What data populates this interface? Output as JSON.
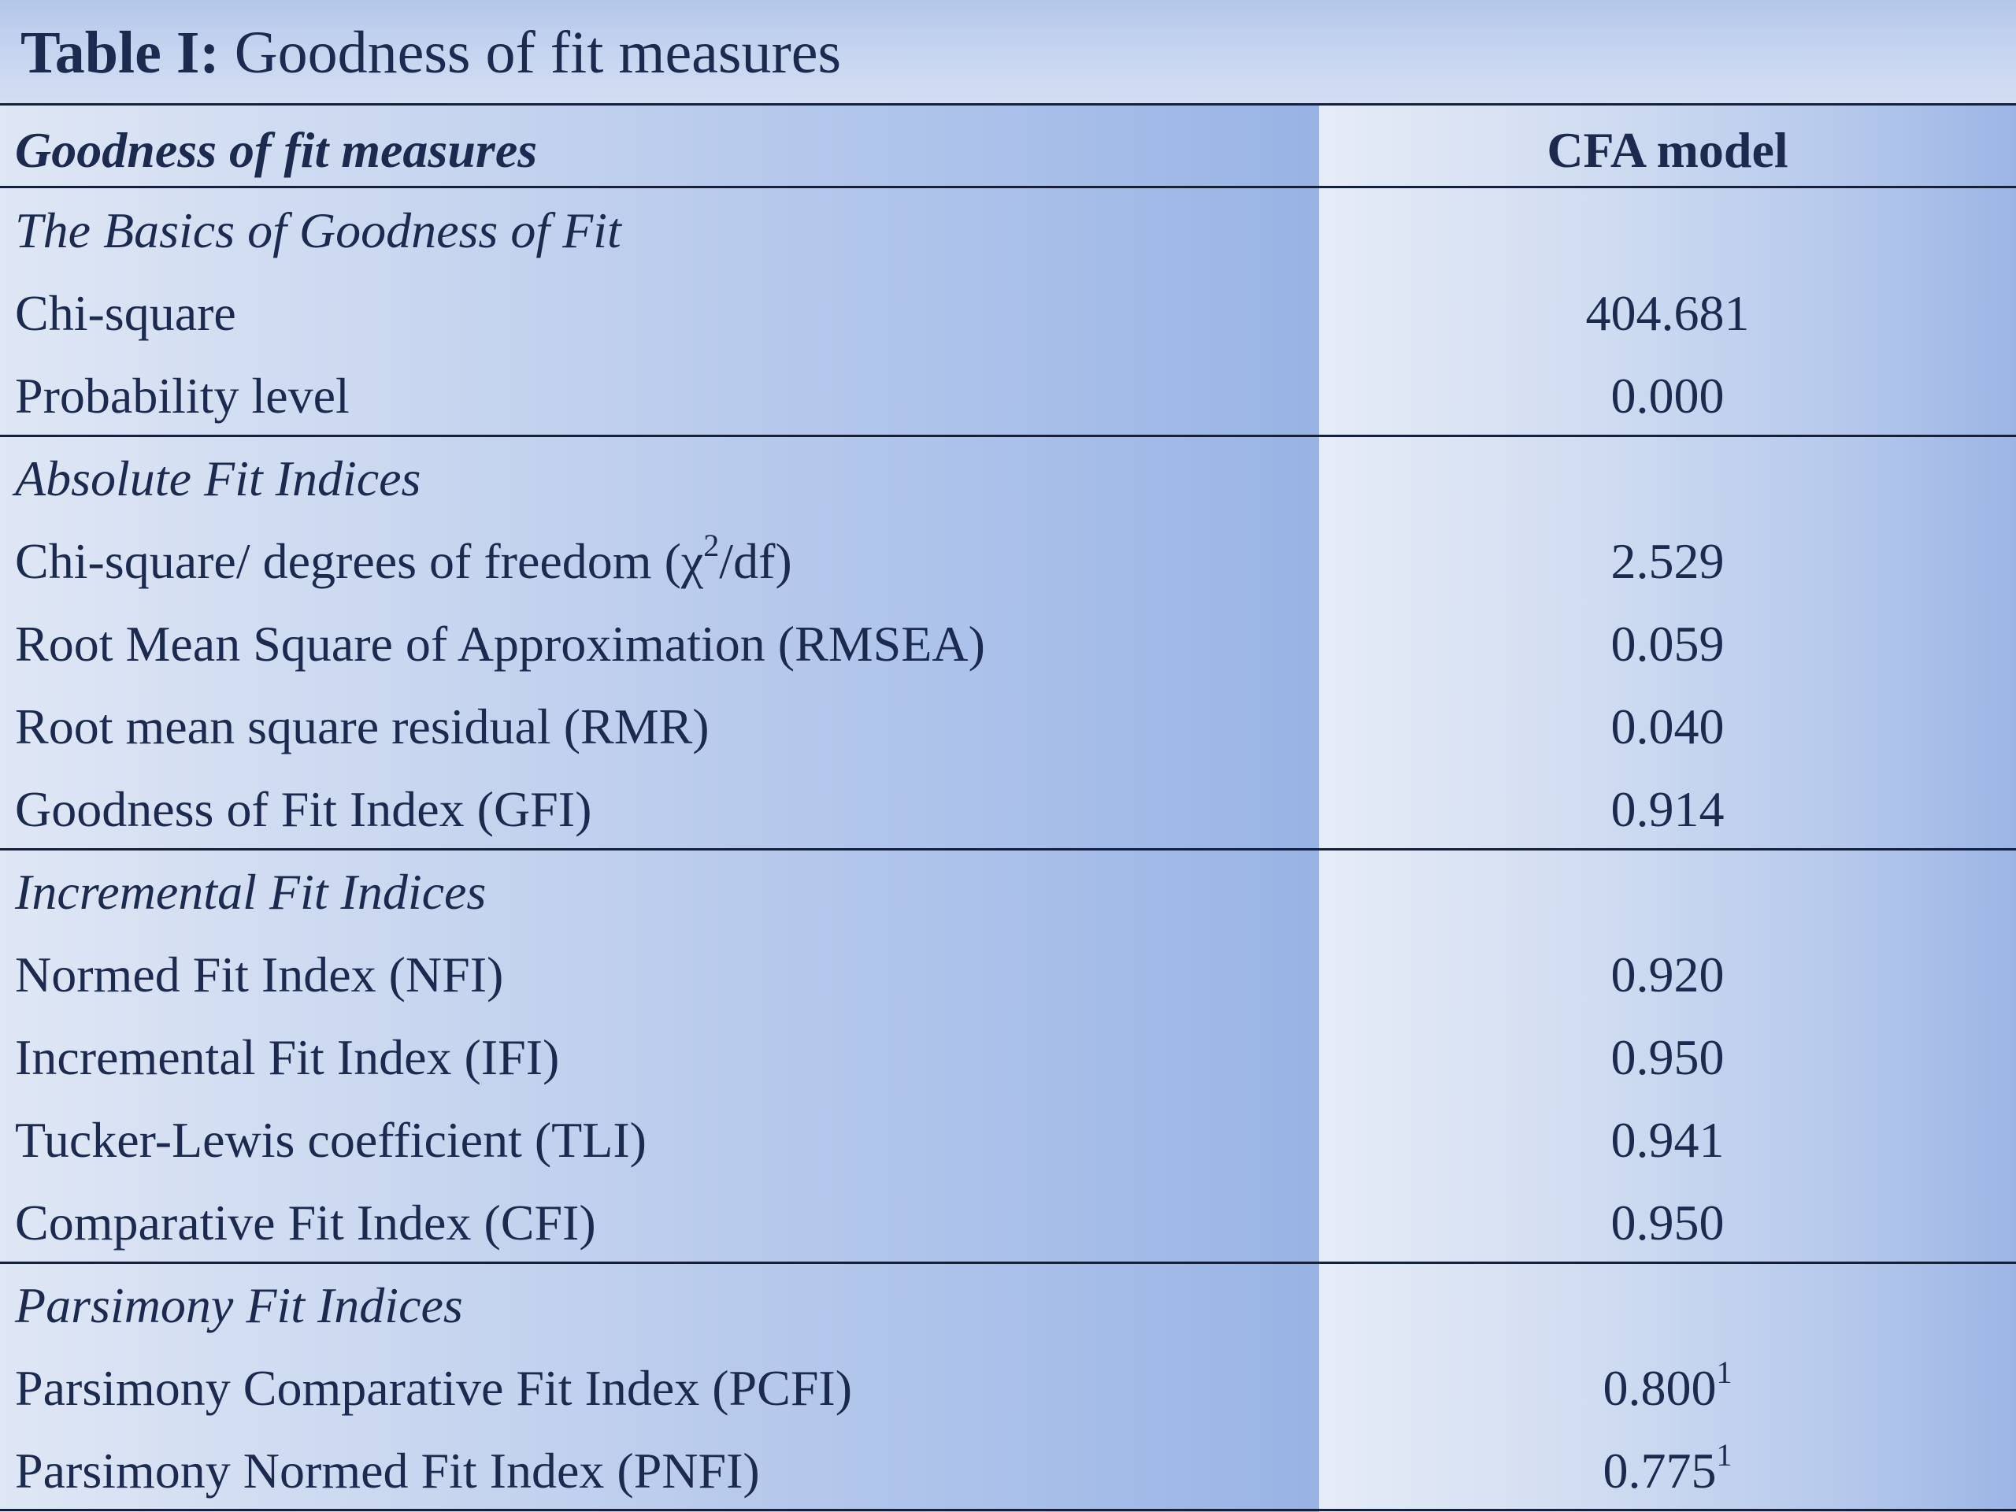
{
  "title": {
    "bold_part": "Table I:",
    "rest": " Goodness of fit measures"
  },
  "header": {
    "measure_label": "Goodness of fit measures",
    "value_label": "CFA model"
  },
  "sections": [
    {
      "title": "The Basics of Goodness of Fit",
      "rows": [
        {
          "label": "Chi-square",
          "value": "404.681"
        },
        {
          "label": "Probability level",
          "value": "0.000"
        }
      ]
    },
    {
      "title": "Absolute Fit Indices",
      "rows": [
        {
          "label_pre": "Chi-square/ degrees of freedom (χ",
          "label_sup": "2",
          "label_post": "/df)",
          "value": "2.529"
        },
        {
          "label": "Root Mean Square of Approximation (RMSEA)",
          "value": "0.059"
        },
        {
          "label": "Root mean square residual (RMR)",
          "value": "0.040"
        },
        {
          "label": "Goodness of Fit Index  (GFI)",
          "value": "0.914"
        }
      ]
    },
    {
      "title": "Incremental Fit Indices",
      "rows": [
        {
          "label": "Normed Fit Index (NFI)",
          "value": "0.920"
        },
        {
          "label": "Incremental Fit Index (IFI)",
          "value": "0.950"
        },
        {
          "label": "Tucker-Lewis coefficient (TLI)",
          "value": "0.941"
        },
        {
          "label": "Comparative Fit Index (CFI)",
          "value": "0.950"
        }
      ]
    },
    {
      "title": "Parsimony Fit Indices",
      "rows": [
        {
          "label": "Parsimony Comparative Fit Index (PCFI)",
          "value": "0.800",
          "value_sup": "1"
        },
        {
          "label": "Parsimony Normed Fit Index (PNFI)",
          "value": "0.775",
          "value_sup": "1"
        }
      ]
    }
  ]
}
